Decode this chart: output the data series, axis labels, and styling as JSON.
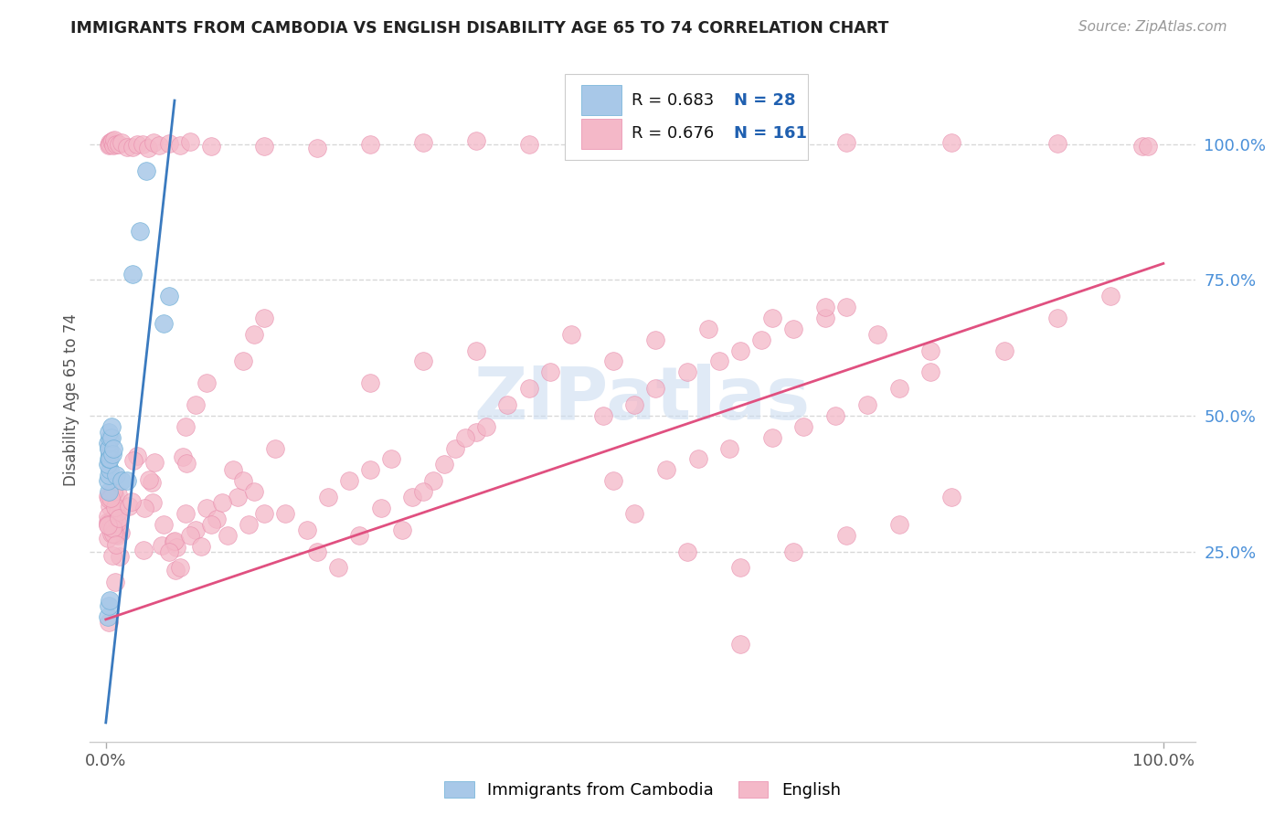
{
  "title": "IMMIGRANTS FROM CAMBODIA VS ENGLISH DISABILITY AGE 65 TO 74 CORRELATION CHART",
  "source": "Source: ZipAtlas.com",
  "ylabel": "Disability Age 65 to 74",
  "legend_r1": "R = 0.683",
  "legend_n1": "N = 28",
  "legend_r2": "R = 0.676",
  "legend_n2": "N = 161",
  "blue_color": "#a8c8e8",
  "blue_edge_color": "#6baed6",
  "pink_color": "#f4b8c8",
  "pink_edge_color": "#e88aaa",
  "blue_line_color": "#3a7abf",
  "pink_line_color": "#e05080",
  "background_color": "#ffffff",
  "grid_color": "#d8d8d8",
  "title_color": "#222222",
  "source_color": "#999999",
  "right_tick_color": "#4a90d9",
  "legend_text_color": "#111111",
  "legend_n_color": "#2060b0",
  "watermark_color": "#ccddf0",
  "blue_line": {
    "x0": 0.0,
    "x1": 0.065,
    "y0": -0.065,
    "y1": 1.08
  },
  "pink_line": {
    "x0": 0.0,
    "x1": 1.0,
    "y0": 0.125,
    "y1": 0.78
  },
  "xlim": [
    -0.015,
    1.03
  ],
  "ylim": [
    -0.1,
    1.16
  ],
  "ytick_positions": [
    0.25,
    0.5,
    0.75,
    1.0
  ],
  "ytick_labels": [
    "25.0%",
    "50.0%",
    "75.0%",
    "100.0%"
  ]
}
